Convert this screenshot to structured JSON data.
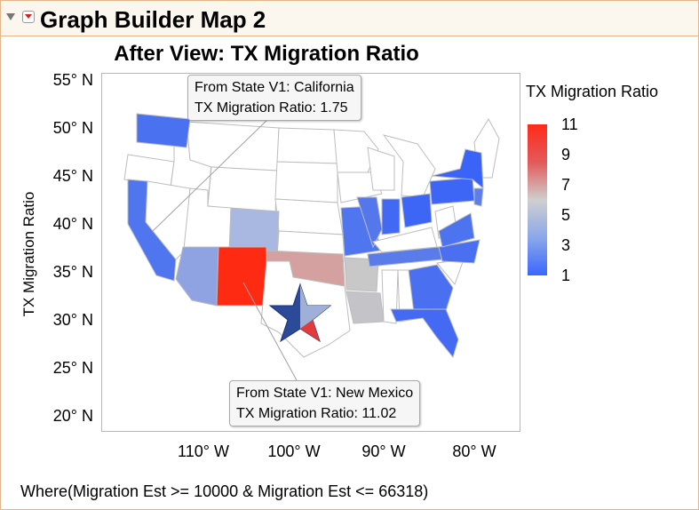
{
  "header": {
    "title": "Graph Builder Map 2"
  },
  "chart_data": {
    "type": "map",
    "title": "After View: TX Migration Ratio",
    "ylabel": "TX Migration Ratio",
    "y_ticks": [
      "55° N",
      "50° N",
      "45° N",
      "40° N",
      "35° N",
      "30° N",
      "25° N",
      "20° N"
    ],
    "x_ticks": [
      "110° W",
      "100° W",
      "90° W",
      "80° W"
    ],
    "legend": {
      "title": "TX Migration Ratio",
      "ticks": [
        "11",
        "9",
        "7",
        "5",
        "3",
        "1"
      ],
      "colors": {
        "high": "#ff2a1a",
        "mid": "#cfcfcf",
        "low": "#3a66ff"
      }
    },
    "regions": [
      {
        "state": "California",
        "value": 1.75
      },
      {
        "state": "New Mexico",
        "value": 11.02
      }
    ]
  },
  "callouts": [
    {
      "line1": "From State V1: California",
      "line2": "TX Migration Ratio: 1.75"
    },
    {
      "line1": "From State V1: New Mexico",
      "line2": "TX Migration Ratio: 11.02"
    }
  ],
  "footer": "Where(Migration Est >= 10000 & Migration Est <= 66318)"
}
